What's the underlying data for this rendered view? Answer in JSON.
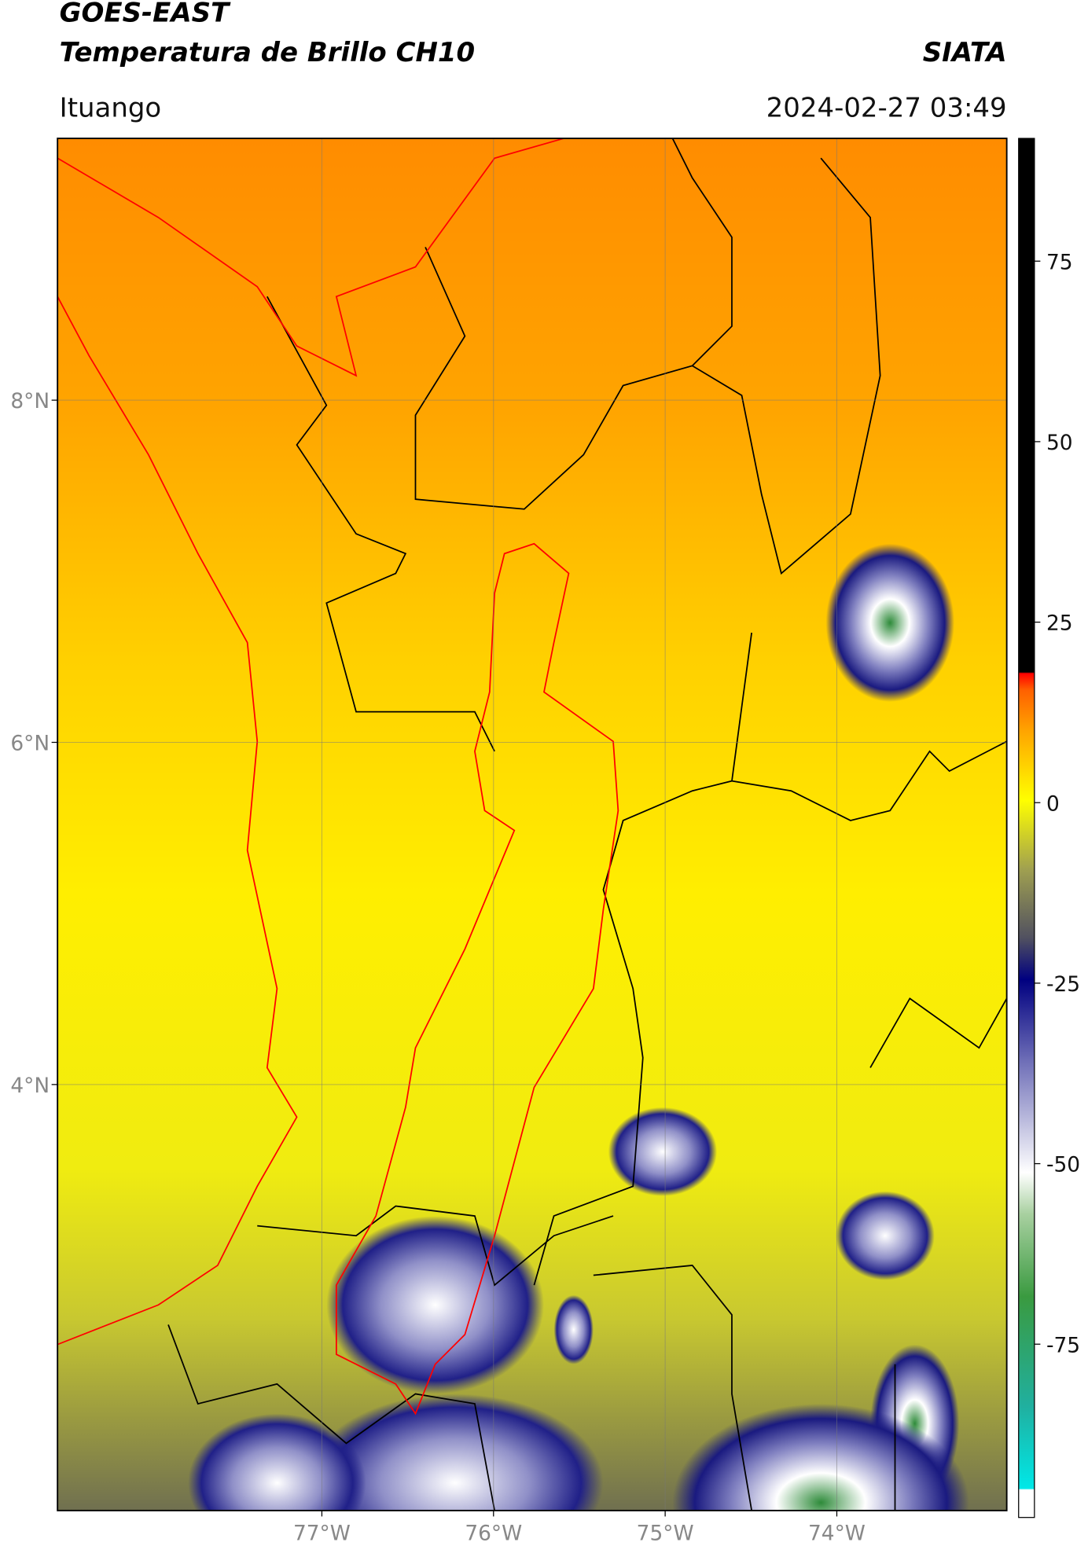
{
  "header": {
    "satellite": "GOES-EAST",
    "product": "Temperatura de Brillo CH10",
    "organization": "SIATA",
    "location": "Ituango",
    "timestamp": "2024-02-27 03:49"
  },
  "map": {
    "xlim": [
      -78.54,
      -73.01
    ],
    "ylim": [
      1.51,
      9.53
    ],
    "xticks": [
      {
        "value": -77,
        "label": "77°W"
      },
      {
        "value": -76,
        "label": "76°W"
      },
      {
        "value": -75,
        "label": "75°W"
      },
      {
        "value": -74,
        "label": "74°W"
      }
    ],
    "yticks": [
      {
        "value": 8,
        "label": "8°N"
      },
      {
        "value": 6,
        "label": "6°N"
      },
      {
        "value": 4,
        "label": "4°N"
      }
    ],
    "grid": true
  },
  "colorbar": {
    "lim": [
      -99,
      92
    ],
    "ticks": [
      75,
      50,
      25,
      0,
      -25,
      -50,
      -75
    ]
  }
}
